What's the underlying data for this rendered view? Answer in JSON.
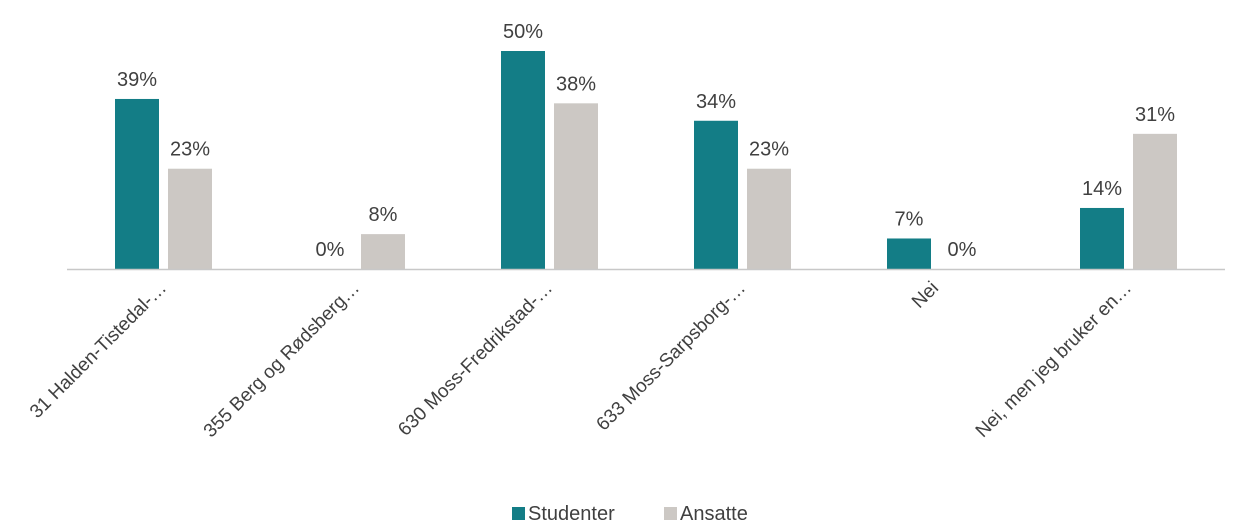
{
  "chart_data": {
    "type": "bar",
    "categories": [
      "31 Halden-Tistedal-…",
      "355 Berg og Rødsberg…",
      "630 Moss-Fredrikstad-…",
      "633 Moss-Sarpsborg-…",
      "Nei",
      "Nei,  men jeg bruker en…"
    ],
    "series": [
      {
        "name": "Studenter",
        "color": "#137d86",
        "values": [
          39,
          0,
          50,
          34,
          7,
          14
        ],
        "labels": [
          "39%",
          "0%",
          "50%",
          "34%",
          "7%",
          "14%"
        ]
      },
      {
        "name": "Ansatte",
        "color": "#ccc8c4",
        "values": [
          23,
          8,
          38,
          23,
          0,
          31
        ],
        "labels": [
          "23%",
          "8%",
          "38%",
          "23%",
          "0%",
          "31%"
        ]
      }
    ],
    "ylim": [
      0,
      50
    ],
    "grid": false,
    "legend_position": "bottom",
    "axis_color": "#c8c8c8"
  }
}
